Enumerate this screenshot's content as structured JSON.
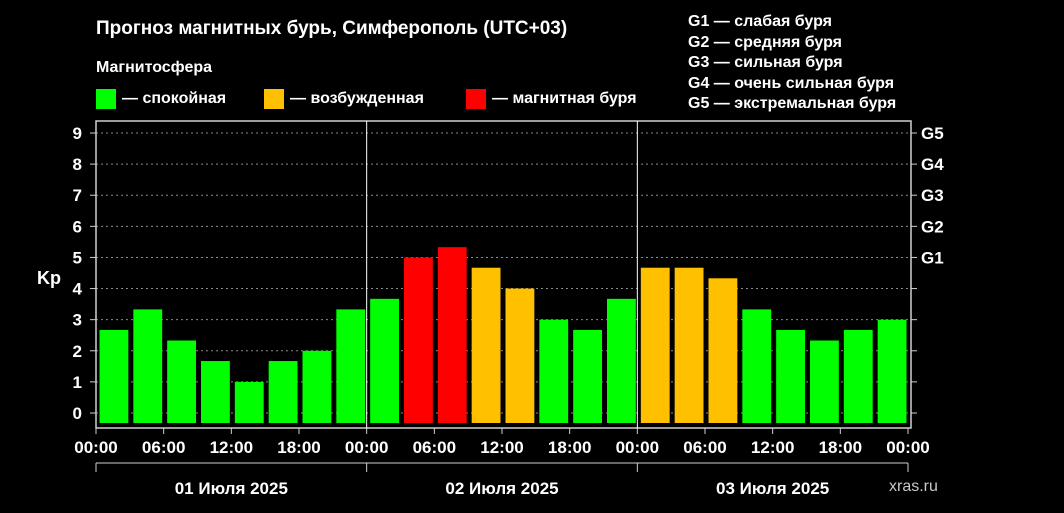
{
  "title": "Прогноз магнитных бурь, Симферополь (UTC+03)",
  "subtitle": "Магнитосфера",
  "legend": [
    {
      "label": "— спокойная",
      "color": "#00ff00"
    },
    {
      "label": "— возбужденная",
      "color": "#ffc000"
    },
    {
      "label": "— магнитная буря",
      "color": "#ff0000"
    }
  ],
  "g_legend": [
    "G1 — слабая буря",
    "G2 — средняя буря",
    "G3 — сильная буря",
    "G4 — очень сильная буря",
    "G5 — экстремальная буря"
  ],
  "watermark": "xras.ru",
  "chart_data": {
    "type": "bar",
    "ylabel": "Kp",
    "ylim": [
      0,
      9
    ],
    "y_ticks": [
      "0",
      "1",
      "2",
      "3",
      "4",
      "5",
      "6",
      "7",
      "8",
      "9"
    ],
    "right_ticks": [
      {
        "label": "G1",
        "kp": 5
      },
      {
        "label": "G2",
        "kp": 6
      },
      {
        "label": "G3",
        "kp": 7
      },
      {
        "label": "G4",
        "kp": 8
      },
      {
        "label": "G5",
        "kp": 9
      }
    ],
    "x_tick_labels": [
      "00:00",
      "06:00",
      "12:00",
      "18:00",
      "00:00",
      "06:00",
      "12:00",
      "18:00",
      "00:00",
      "06:00",
      "12:00",
      "18:00",
      "00:00"
    ],
    "days": [
      "01 Июля 2025",
      "02 Июля 2025",
      "03 Июля 2025"
    ],
    "grid": "horizontal dotted",
    "colors": {
      "quiet": "#00ff00",
      "active": "#ffc000",
      "storm": "#ff0000"
    },
    "series": [
      {
        "values": [
          2.67,
          3.33,
          2.33,
          1.67,
          1.0,
          1.67,
          2.0,
          3.33,
          3.67,
          5.0,
          5.33,
          4.67,
          4.0,
          3.0,
          2.67,
          3.67,
          4.67,
          4.67,
          4.33,
          3.33,
          2.67,
          2.33,
          2.67,
          3.0
        ]
      }
    ]
  }
}
